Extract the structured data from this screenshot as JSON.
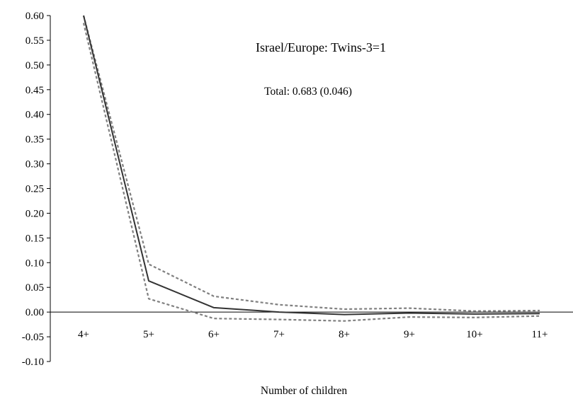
{
  "chart_data": {
    "type": "line",
    "title": "Israel/Europe: Twins-3=1",
    "subtitle": "Total: 0.683 (0.046)",
    "xlabel": "Number of children",
    "ylabel": "",
    "categories": [
      "4+",
      "5+",
      "6+",
      "7+",
      "8+",
      "9+",
      "10+",
      "11+"
    ],
    "ylim": [
      -0.1,
      0.6
    ],
    "ytick_labels": [
      "0.60",
      "0.55",
      "0.50",
      "0.45",
      "0.40",
      "0.35",
      "0.30",
      "0.25",
      "0.20",
      "0.15",
      "0.10",
      "0.05",
      "0.00",
      "-0.05",
      "-0.10"
    ],
    "ytick_values": [
      0.6,
      0.55,
      0.5,
      0.45,
      0.4,
      0.35,
      0.3,
      0.25,
      0.2,
      0.15,
      0.1,
      0.05,
      0.0,
      -0.05,
      -0.1
    ],
    "grid": false,
    "legend": "none",
    "series": [
      {
        "values": [
          0.6,
          0.063,
          0.009,
          0.0,
          -0.005,
          -0.002,
          -0.004,
          -0.003
        ],
        "style": "solid",
        "color": "#333333"
      },
      {
        "values": [
          0.6,
          0.097,
          0.032,
          0.015,
          0.006,
          0.008,
          0.002,
          0.003
        ],
        "style": "dashed",
        "color": "#808080"
      },
      {
        "values": [
          0.585,
          0.027,
          -0.013,
          -0.015,
          -0.018,
          -0.01,
          -0.011,
          -0.008
        ],
        "style": "dashed",
        "color": "#808080"
      }
    ]
  }
}
